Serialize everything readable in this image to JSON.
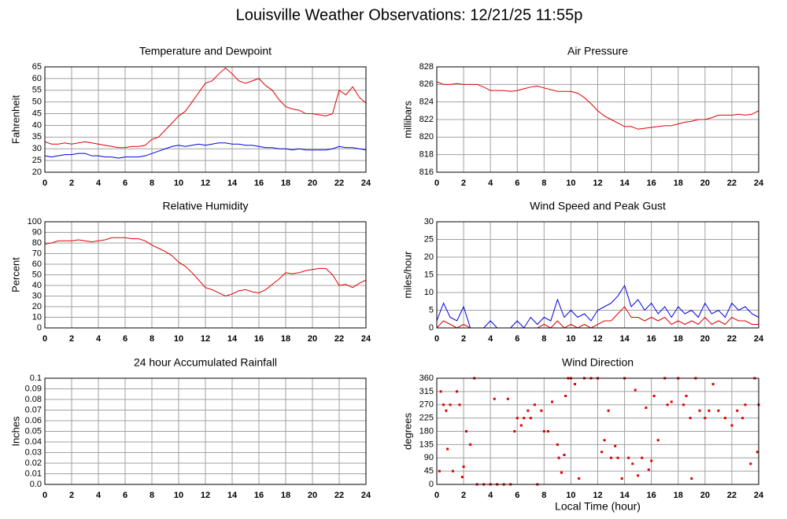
{
  "title": "Louisville Weather Observations: 12/21/25 11:55p",
  "chart_data": [
    {
      "type": "line",
      "title": "Temperature and Dewpoint",
      "ylabel": "Fahrenheit",
      "x": [
        0,
        0.5,
        1,
        1.5,
        2,
        2.5,
        3,
        3.5,
        4,
        4.5,
        5,
        5.5,
        6,
        6.5,
        7,
        7.5,
        8,
        8.5,
        9,
        9.5,
        10,
        10.5,
        11,
        11.5,
        12,
        12.5,
        13,
        13.5,
        14,
        14.5,
        15,
        15.5,
        16,
        16.5,
        17,
        17.5,
        18,
        18.5,
        19,
        19.5,
        20,
        20.5,
        21,
        21.5,
        22,
        22.5,
        23,
        23.5,
        24
      ],
      "series": [
        {
          "color": "#e00000",
          "values": [
            33,
            32,
            32,
            32.5,
            32,
            32.5,
            33,
            32.5,
            32,
            31.5,
            31,
            30.5,
            30.5,
            31,
            31,
            31.5,
            34,
            35,
            38,
            41,
            44,
            46,
            50,
            54,
            58,
            59,
            62,
            64.5,
            62,
            59,
            58,
            59,
            60,
            57,
            55,
            51,
            48,
            47,
            46.5,
            45,
            45,
            44.5,
            44,
            45,
            55,
            53,
            56.5,
            52,
            49.5
          ]
        },
        {
          "color": "#0000e0",
          "values": [
            27,
            26.5,
            27,
            27.5,
            27.5,
            28,
            28,
            27,
            27,
            26.5,
            26.5,
            26,
            26.5,
            26.5,
            26.5,
            27,
            28,
            29,
            30,
            31,
            31.5,
            31,
            31.5,
            32,
            31.5,
            32,
            32.5,
            32.5,
            32,
            32,
            31.5,
            31.5,
            31,
            30.5,
            30.5,
            30,
            30,
            29.5,
            30,
            29.5,
            29.5,
            29.5,
            29.5,
            30,
            31,
            30.5,
            30.5,
            30,
            29.5
          ]
        }
      ],
      "xlim": [
        0,
        24
      ],
      "xticks": [
        0,
        2,
        4,
        6,
        8,
        10,
        12,
        14,
        16,
        18,
        20,
        22,
        24
      ],
      "ylim": [
        20,
        65
      ],
      "yticks": [
        20,
        25,
        30,
        35,
        40,
        45,
        50,
        55,
        60,
        65
      ],
      "grid": true
    },
    {
      "type": "line",
      "title": "Air Pressure",
      "ylabel": "millibars",
      "x": [
        0,
        0.5,
        1,
        1.5,
        2,
        2.5,
        3,
        3.5,
        4,
        4.5,
        5,
        5.5,
        6,
        6.5,
        7,
        7.5,
        8,
        8.5,
        9,
        9.5,
        10,
        10.5,
        11,
        11.5,
        12,
        12.5,
        13,
        13.5,
        14,
        14.5,
        15,
        15.5,
        16,
        16.5,
        17,
        17.5,
        18,
        18.5,
        19,
        19.5,
        20,
        20.5,
        21,
        21.5,
        22,
        22.5,
        23,
        23.5,
        24
      ],
      "series": [
        {
          "color": "#e00000",
          "values": [
            826.3,
            826,
            826,
            826.1,
            826,
            826,
            826,
            825.7,
            825.3,
            825.3,
            825.3,
            825.2,
            825.3,
            825.5,
            825.7,
            825.8,
            825.6,
            825.4,
            825.2,
            825.2,
            825.2,
            825,
            824.5,
            823.8,
            823,
            822.4,
            822,
            821.6,
            821.2,
            821.2,
            820.9,
            821,
            821.1,
            821.2,
            821.3,
            821.3,
            821.5,
            821.7,
            821.8,
            822,
            822,
            822.2,
            822.5,
            822.5,
            822.5,
            822.6,
            822.5,
            822.6,
            823
          ]
        }
      ],
      "xlim": [
        0,
        24
      ],
      "xticks": [
        0,
        2,
        4,
        6,
        8,
        10,
        12,
        14,
        16,
        18,
        20,
        22,
        24
      ],
      "ylim": [
        816,
        828
      ],
      "yticks": [
        816,
        818,
        820,
        822,
        824,
        826,
        828
      ],
      "grid": true
    },
    {
      "type": "line",
      "title": "Relative Humidity",
      "ylabel": "Percent",
      "x": [
        0,
        0.5,
        1,
        1.5,
        2,
        2.5,
        3,
        3.5,
        4,
        4.5,
        5,
        5.5,
        6,
        6.5,
        7,
        7.5,
        8,
        8.5,
        9,
        9.5,
        10,
        10.5,
        11,
        11.5,
        12,
        12.5,
        13,
        13.5,
        14,
        14.5,
        15,
        15.5,
        16,
        16.5,
        17,
        17.5,
        18,
        18.5,
        19,
        19.5,
        20,
        20.5,
        21,
        21.5,
        22,
        22.5,
        23,
        23.5,
        24
      ],
      "series": [
        {
          "color": "#e00000",
          "values": [
            79,
            80,
            82,
            82,
            82,
            83,
            82,
            81,
            82,
            83,
            85,
            85,
            85,
            84,
            84,
            82,
            78,
            75,
            72,
            68,
            62,
            58,
            52,
            45,
            38,
            36,
            33,
            30,
            32,
            35,
            36,
            34,
            33,
            36,
            41,
            46,
            52,
            51,
            52,
            54,
            55,
            56,
            56,
            50,
            40,
            41,
            38,
            42,
            45
          ]
        }
      ],
      "xlim": [
        0,
        24
      ],
      "xticks": [
        0,
        2,
        4,
        6,
        8,
        10,
        12,
        14,
        16,
        18,
        20,
        22,
        24
      ],
      "ylim": [
        0,
        100
      ],
      "yticks": [
        0,
        10,
        20,
        30,
        40,
        50,
        60,
        70,
        80,
        90,
        100
      ],
      "grid": true
    },
    {
      "type": "line",
      "title": "Wind Speed and Peak Gust",
      "ylabel": "miles/hour",
      "x": [
        0,
        0.5,
        1,
        1.5,
        2,
        2.5,
        3,
        3.5,
        4,
        4.5,
        5,
        5.5,
        6,
        6.5,
        7,
        7.5,
        8,
        8.5,
        9,
        9.5,
        10,
        10.5,
        11,
        11.5,
        12,
        12.5,
        13,
        13.5,
        14,
        14.5,
        15,
        15.5,
        16,
        16.5,
        17,
        17.5,
        18,
        18.5,
        19,
        19.5,
        20,
        20.5,
        21,
        21.5,
        22,
        22.5,
        23,
        23.5,
        24
      ],
      "series": [
        {
          "color": "#0000e0",
          "values": [
            2,
            7,
            3,
            2,
            6,
            0,
            0,
            0,
            2,
            0,
            0,
            0,
            2,
            0,
            3,
            1,
            3,
            2,
            8,
            3,
            5,
            3,
            4,
            2,
            5,
            6,
            7,
            9,
            12,
            6,
            8,
            5,
            7,
            4,
            6,
            3,
            6,
            4,
            5,
            3,
            7,
            4,
            5,
            3,
            7,
            5,
            6,
            4,
            3
          ]
        },
        {
          "color": "#e00000",
          "values": [
            0,
            2,
            1,
            0,
            1,
            0,
            0,
            0,
            0,
            0,
            0,
            0,
            0,
            0,
            0,
            0,
            1,
            0,
            2,
            0,
            1,
            0,
            1,
            0,
            1,
            2,
            2,
            4,
            6,
            3,
            3,
            2,
            3,
            2,
            3,
            1,
            2,
            1,
            2,
            1,
            3,
            1,
            2,
            1,
            3,
            2,
            2,
            1,
            1
          ]
        }
      ],
      "xlim": [
        0,
        24
      ],
      "xticks": [
        0,
        2,
        4,
        6,
        8,
        10,
        12,
        14,
        16,
        18,
        20,
        22,
        24
      ],
      "ylim": [
        0,
        30
      ],
      "yticks": [
        0,
        5,
        10,
        15,
        20,
        25,
        30
      ],
      "grid": true
    },
    {
      "type": "line",
      "title": "24 hour Accumulated Rainfall",
      "ylabel": "Inches",
      "x": [
        0,
        24
      ],
      "series": [
        {
          "color": "#e00000",
          "values": [
            0,
            0
          ]
        }
      ],
      "xlim": [
        0,
        24
      ],
      "xticks": [
        0,
        2,
        4,
        6,
        8,
        10,
        12,
        14,
        16,
        18,
        20,
        22,
        24
      ],
      "ylim": [
        0,
        0.1
      ],
      "yticks": [
        {
          "value": 0,
          "label": "0.0"
        },
        0.01,
        0.02,
        0.03,
        0.04,
        0.05,
        0.06,
        0.07,
        0.08,
        0.09,
        0.1
      ],
      "grid": true
    },
    {
      "type": "scatter",
      "title": "Wind Direction",
      "ylabel": "degrees",
      "xlabel": "Local Time (hour)",
      "x": [
        0.2,
        0.3,
        0.5,
        0.7,
        0.8,
        1,
        1.2,
        1.5,
        1.7,
        1.9,
        2,
        2.2,
        2.5,
        2.8,
        3,
        3.5,
        4,
        4.3,
        4.5,
        5,
        5.3,
        5.5,
        5.8,
        6,
        6.3,
        6.5,
        6.8,
        7,
        7.3,
        7.5,
        7.8,
        8,
        8.3,
        8.6,
        9,
        9.1,
        9.3,
        9.5,
        9.6,
        9.8,
        10,
        10.3,
        10.6,
        11,
        11.5,
        12,
        12.3,
        12.5,
        12.8,
        13,
        13.3,
        13.5,
        13.8,
        14,
        14.3,
        14.6,
        14.8,
        15,
        15.3,
        15.6,
        15.8,
        16,
        16.2,
        16.5,
        17,
        17.2,
        17.5,
        18,
        18.4,
        18.6,
        18.9,
        19,
        19.3,
        19.6,
        20,
        20.3,
        20.6,
        21,
        21.5,
        22,
        22.4,
        22.8,
        23,
        23.4,
        23.7,
        23.9,
        24
      ],
      "series": [
        {
          "color": "#e00000",
          "values": [
            45,
            315,
            270,
            250,
            120,
            270,
            45,
            315,
            270,
            25,
            60,
            180,
            135,
            360,
            0,
            0,
            0,
            290,
            0,
            0,
            290,
            0,
            180,
            225,
            200,
            225,
            250,
            225,
            270,
            0,
            250,
            180,
            180,
            280,
            135,
            90,
            40,
            100,
            300,
            360,
            360,
            340,
            20,
            360,
            360,
            360,
            110,
            150,
            250,
            90,
            130,
            90,
            20,
            360,
            90,
            70,
            320,
            30,
            90,
            260,
            50,
            80,
            300,
            150,
            360,
            270,
            280,
            360,
            270,
            300,
            225,
            20,
            360,
            250,
            225,
            250,
            340,
            250,
            225,
            200,
            250,
            225,
            270,
            70,
            360,
            110,
            270
          ]
        }
      ],
      "xlim": [
        0,
        24
      ],
      "xticks": [
        0,
        2,
        4,
        6,
        8,
        10,
        12,
        14,
        16,
        18,
        20,
        22,
        24
      ],
      "ylim": [
        0,
        360
      ],
      "yticks": [
        0,
        45,
        90,
        135,
        180,
        225,
        270,
        315,
        360
      ],
      "grid": true
    }
  ]
}
